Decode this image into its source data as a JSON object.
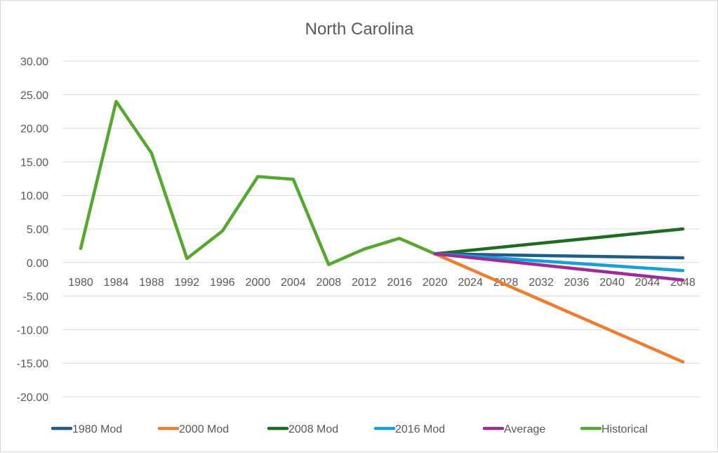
{
  "chart_data": {
    "type": "line",
    "title": "North Carolina",
    "xlabel": "",
    "ylabel": "",
    "categories": [
      "1980",
      "1984",
      "1988",
      "1992",
      "1996",
      "2000",
      "2004",
      "2008",
      "2012",
      "2016",
      "2020",
      "2024",
      "2028",
      "2032",
      "2036",
      "2040",
      "2044",
      "2048"
    ],
    "ylim": [
      -20,
      30
    ],
    "y_ticks": [
      30,
      25,
      20,
      15,
      10,
      5,
      0,
      -5,
      -10,
      -15,
      -20
    ],
    "y_tick_labels": [
      "30.00",
      "25.00",
      "20.00",
      "15.00",
      "10.00",
      "5.00",
      "0.00",
      "-5.00",
      "-10.00",
      "-15.00",
      "-20.00"
    ],
    "grid": true,
    "legend_position": "bottom",
    "series": [
      {
        "name": "1980 Mod",
        "color": "#1f5c87",
        "x": [
          "2020",
          "2048"
        ],
        "values": [
          1.3,
          0.7
        ]
      },
      {
        "name": "2000 Mod",
        "color": "#ed7d31",
        "x": [
          "2020",
          "2048"
        ],
        "values": [
          1.3,
          -14.8
        ]
      },
      {
        "name": "2008 Mod",
        "color": "#1e6b24",
        "x": [
          "2020",
          "2048"
        ],
        "values": [
          1.3,
          5.0
        ]
      },
      {
        "name": "2016 Mod",
        "color": "#15a0d8",
        "x": [
          "2020",
          "2048"
        ],
        "values": [
          1.3,
          -1.2
        ]
      },
      {
        "name": "Average",
        "color": "#9c2c98",
        "x": [
          "2020",
          "2048"
        ],
        "values": [
          1.3,
          -2.6
        ]
      },
      {
        "name": "Historical",
        "color": "#54a82f",
        "x": [
          "1980",
          "1984",
          "1988",
          "1992",
          "1996",
          "2000",
          "2004",
          "2008",
          "2012",
          "2016",
          "2020"
        ],
        "values": [
          2.1,
          24.0,
          16.3,
          0.6,
          4.7,
          12.8,
          12.4,
          -0.3,
          2.0,
          3.6,
          1.3
        ]
      }
    ]
  }
}
